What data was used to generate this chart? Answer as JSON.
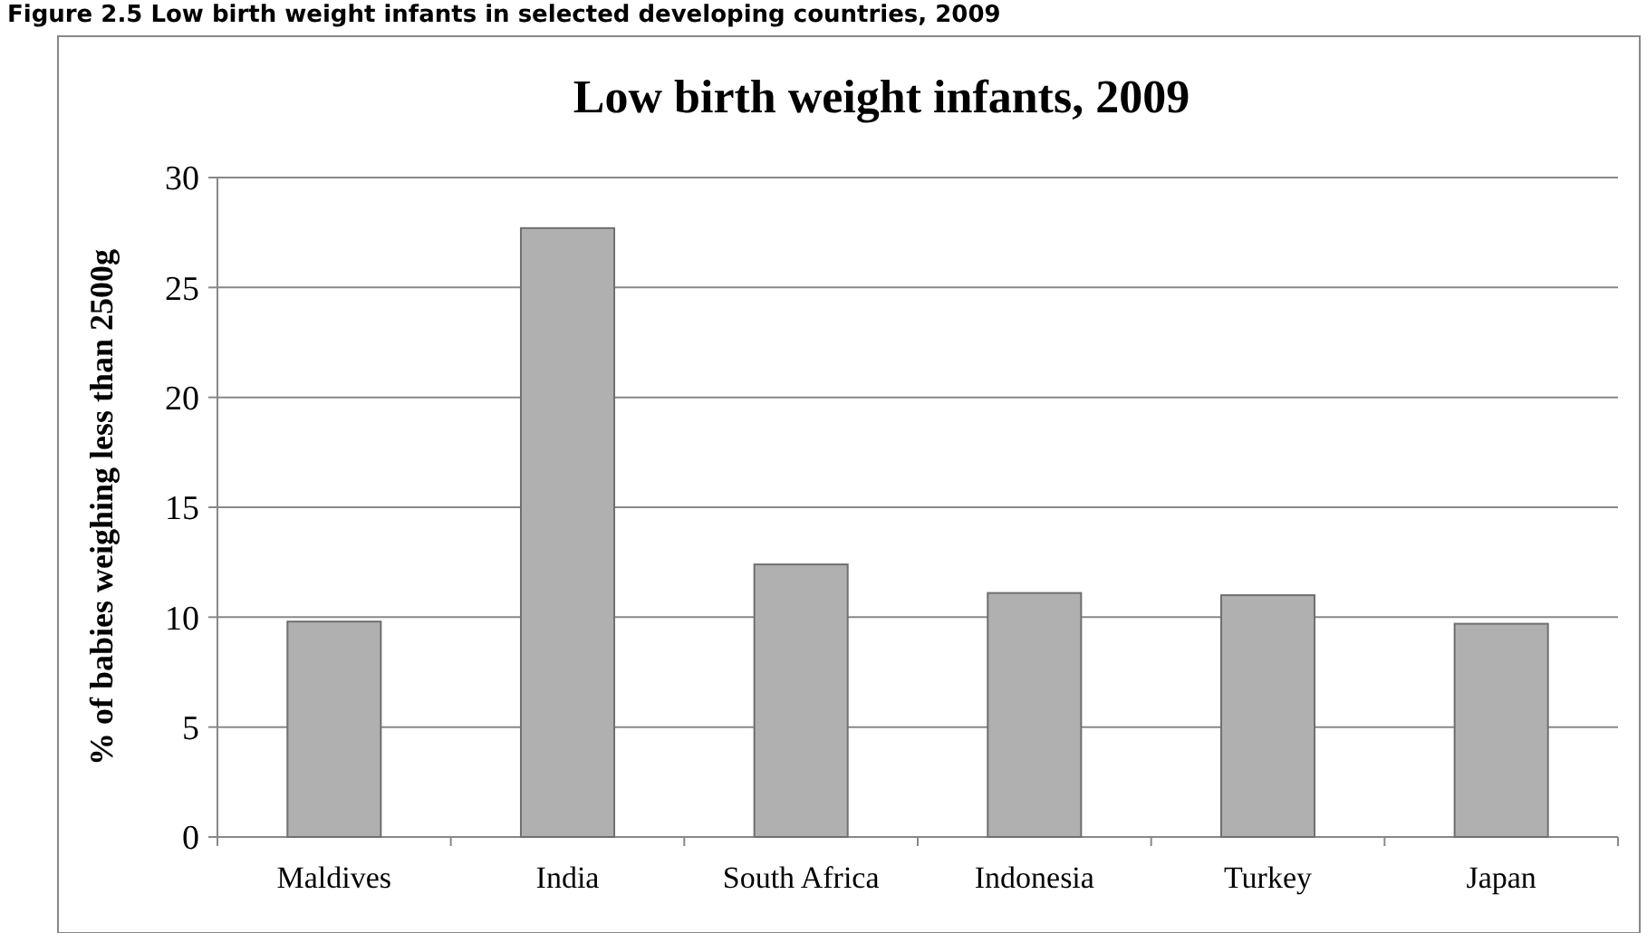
{
  "chart_data": {
    "type": "bar",
    "title": "Low birth weight infants, 2009",
    "ylabel": "% of babies weighing less than 2500g",
    "annotations": [
      "Figure 2.5 Low birth weight infants in selected developing countries, 2009"
    ],
    "categories": [
      "Maldives",
      "India",
      "South Africa",
      "Indonesia",
      "Turkey",
      "Japan"
    ],
    "values": [
      9.8,
      27.7,
      12.4,
      11.1,
      11.0,
      9.7
    ],
    "color": "#b0b0b0",
    "ylim": [
      0,
      30
    ],
    "yticks": [
      0,
      5,
      10,
      15,
      20,
      25,
      30
    ],
    "grid": "y"
  }
}
